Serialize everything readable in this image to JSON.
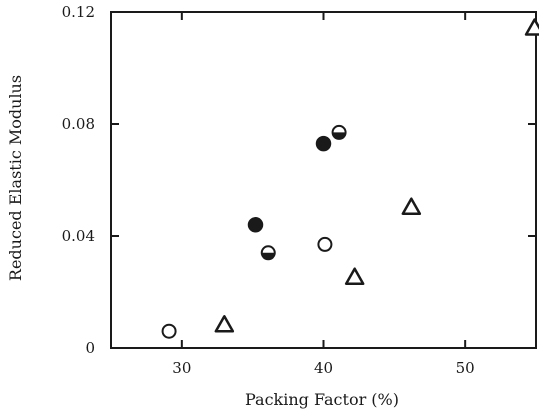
{
  "chart_data": {
    "type": "scatter",
    "title": "",
    "xlabel": "Packing Factor (%)",
    "ylabel": "Reduced Elastic Modulus",
    "xlim": [
      25,
      55
    ],
    "ylim": [
      0,
      0.12
    ],
    "x_ticks": [
      30,
      40,
      50
    ],
    "x_tick_labels": [
      "30",
      "40",
      "50"
    ],
    "y_ticks": [
      0,
      0.04,
      0.08,
      0.12
    ],
    "y_tick_labels": [
      "0",
      "0.04",
      "0.08",
      "0.12"
    ],
    "grid": false,
    "legend": "none",
    "series": [
      {
        "marker": "open-circle",
        "points": [
          {
            "x": 29.1,
            "y": 0.006
          },
          {
            "x": 40.1,
            "y": 0.037
          }
        ]
      },
      {
        "marker": "filled-circle",
        "points": [
          {
            "x": 35.2,
            "y": 0.044
          },
          {
            "x": 40.0,
            "y": 0.073
          }
        ]
      },
      {
        "marker": "half-filled-circle",
        "points": [
          {
            "x": 36.1,
            "y": 0.034
          },
          {
            "x": 41.1,
            "y": 0.077
          }
        ]
      },
      {
        "marker": "open-triangle",
        "points": [
          {
            "x": 33.0,
            "y": 0.008
          },
          {
            "x": 42.2,
            "y": 0.025
          },
          {
            "x": 46.2,
            "y": 0.05
          },
          {
            "x": 54.9,
            "y": 0.114
          }
        ]
      }
    ]
  }
}
